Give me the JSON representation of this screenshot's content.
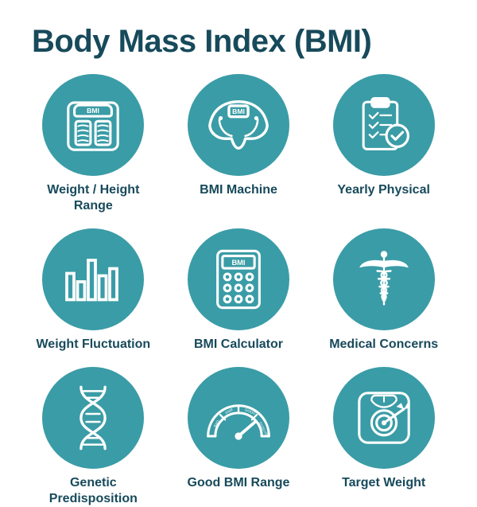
{
  "type": "infographic",
  "title": "Body Mass Index (BMI)",
  "title_color": "#174a5b",
  "title_fontsize": 40,
  "background_color": "#ffffff",
  "circle_bg": "#3a9ca6",
  "icon_stroke": "#ffffff",
  "label_color": "#174a5b",
  "label_fontsize": 16,
  "grid": {
    "cols": 3,
    "rows": 3,
    "circle_diameter": 128
  },
  "items": [
    {
      "id": "weight-height-range",
      "label": "Weight / Height\nRange",
      "icon": "scale"
    },
    {
      "id": "bmi-machine",
      "label": "BMI Machine",
      "icon": "machine"
    },
    {
      "id": "yearly-physical",
      "label": "Yearly Physical",
      "icon": "clipboard"
    },
    {
      "id": "weight-fluctuation",
      "label": "Weight Fluctuation",
      "icon": "bars"
    },
    {
      "id": "bmi-calculator",
      "label": "BMI Calculator",
      "icon": "calculator"
    },
    {
      "id": "medical-concerns",
      "label": "Medical Concerns",
      "icon": "caduceus"
    },
    {
      "id": "genetic-predisposition",
      "label": "Genetic\nPredisposition",
      "icon": "dna"
    },
    {
      "id": "good-bmi-range",
      "label": "Good BMI Range",
      "icon": "gauge"
    },
    {
      "id": "target-weight",
      "label": "Target Weight",
      "icon": "target"
    }
  ]
}
